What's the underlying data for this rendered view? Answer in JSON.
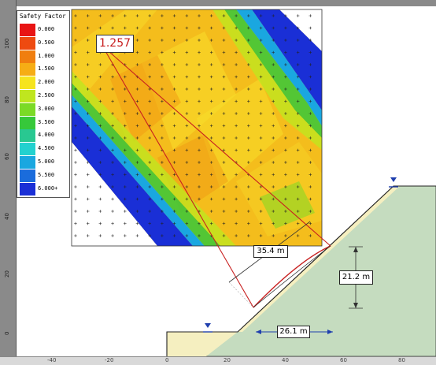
{
  "legend": {
    "title": "Safety Factor",
    "entries": [
      {
        "label": "0.000",
        "color": "#e81414"
      },
      {
        "label": "0.500",
        "color": "#ee4a10"
      },
      {
        "label": "1.000",
        "color": "#f07e0f"
      },
      {
        "label": "1.500",
        "color": "#f6ad15"
      },
      {
        "label": "2.000",
        "color": "#f6e41e"
      },
      {
        "label": "2.500",
        "color": "#bfe61f"
      },
      {
        "label": "3.000",
        "color": "#7bda26"
      },
      {
        "label": "3.500",
        "color": "#36c83a"
      },
      {
        "label": "4.000",
        "color": "#29c891"
      },
      {
        "label": "4.500",
        "color": "#22d1cf"
      },
      {
        "label": "5.000",
        "color": "#1aa7e0"
      },
      {
        "label": "5.500",
        "color": "#1a6cdc"
      },
      {
        "label": "6.000+",
        "color": "#1a2fd6"
      }
    ]
  },
  "critical_fs": "1.257",
  "dimensions": {
    "radius_len": "35.4 m",
    "height": "21.2 m",
    "width": "26.1 m"
  },
  "axis": {
    "y_ticks": [
      "100",
      "80",
      "60",
      "40",
      "20",
      "0"
    ],
    "x_ticks": [
      "-40",
      "-20",
      "0",
      "20",
      "40",
      "60",
      "80"
    ]
  },
  "colors": {
    "slope_fill": "#c5dcbf",
    "weak_layer": "#f5efc0",
    "failure_arc": "#c82020",
    "water_marker": "#1f3fae"
  }
}
